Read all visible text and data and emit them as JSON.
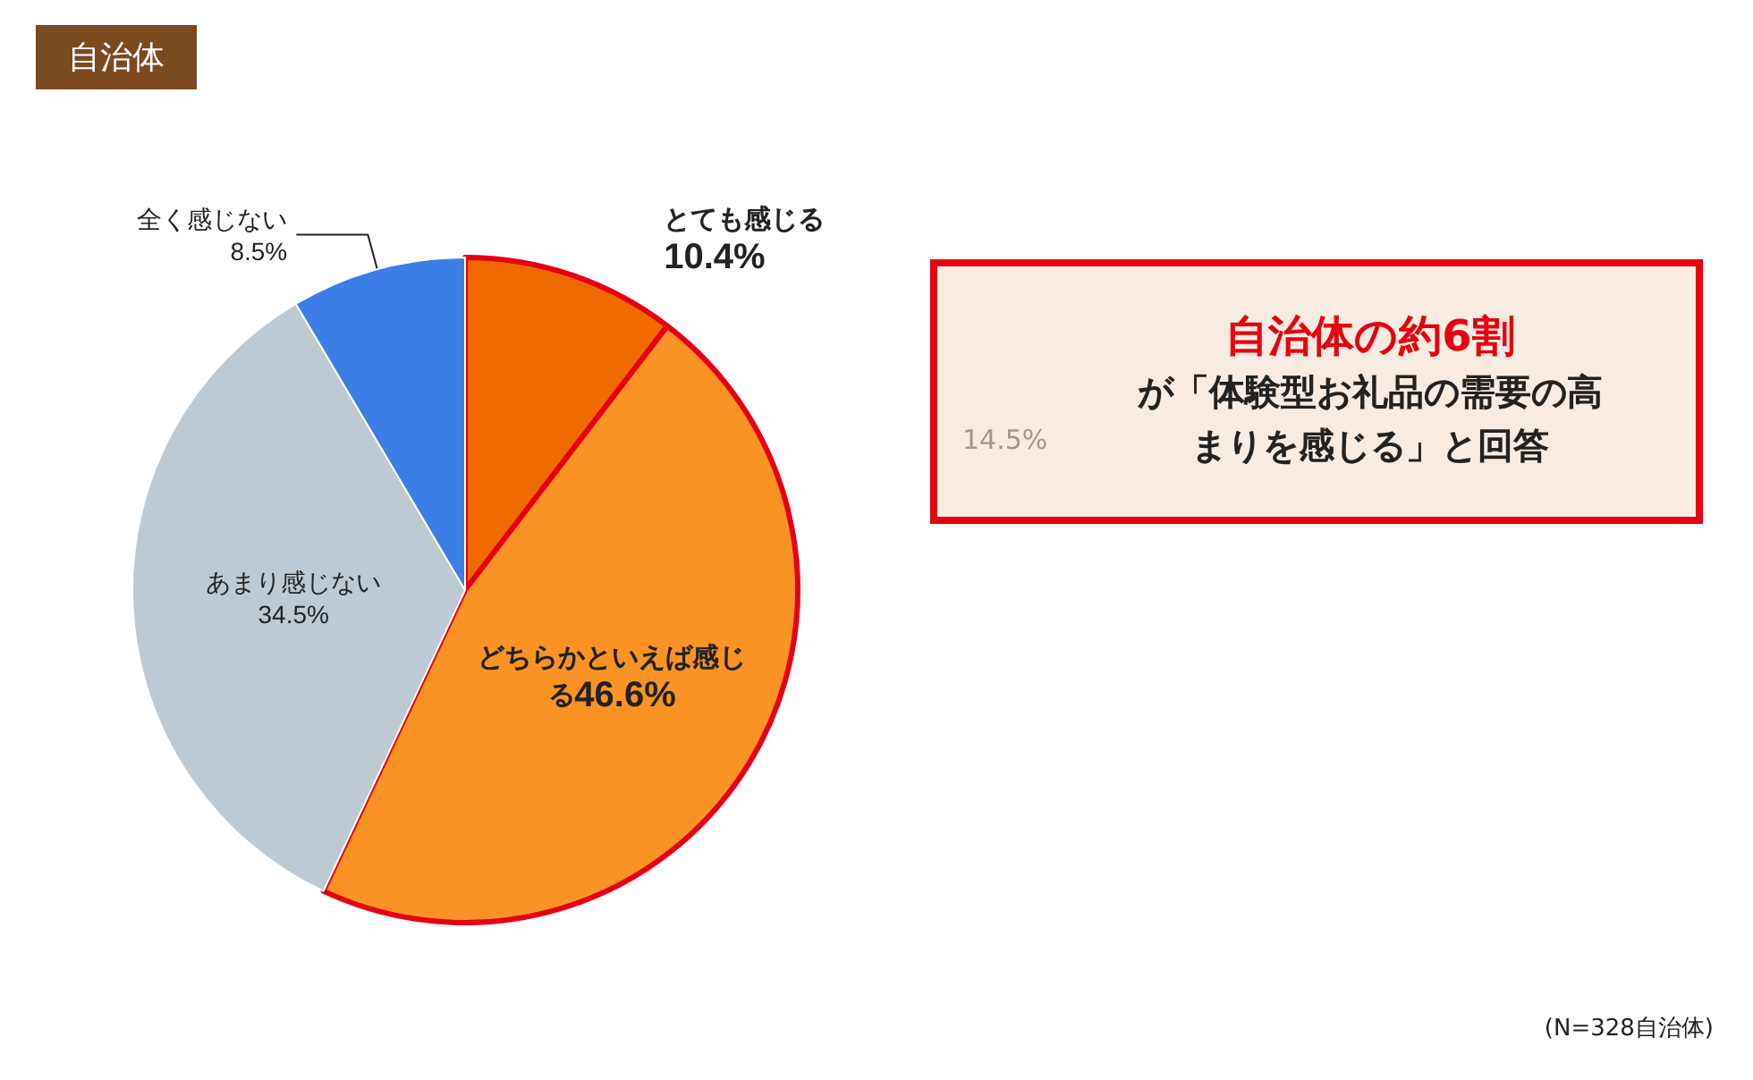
{
  "chart_data": {
    "type": "pie",
    "title": "自治体",
    "categories": [
      "とても感じる",
      "どちらかといえば感じる",
      "あまり感じない",
      "全く感じない"
    ],
    "values": [
      10.4,
      46.6,
      34.5,
      8.5
    ],
    "colors": [
      "#f06a00",
      "#fb9324",
      "#bdcad4",
      "#3b7ee6"
    ],
    "value_labels": [
      "10.4%",
      "46.6%",
      "34.5%",
      "8.5%"
    ],
    "annotations": [
      "自治体の約6割",
      "が「体験型お礼品の需要の高まりを感じる」と回答",
      "14.5%",
      "(N=328自治体)"
    ]
  }
}
